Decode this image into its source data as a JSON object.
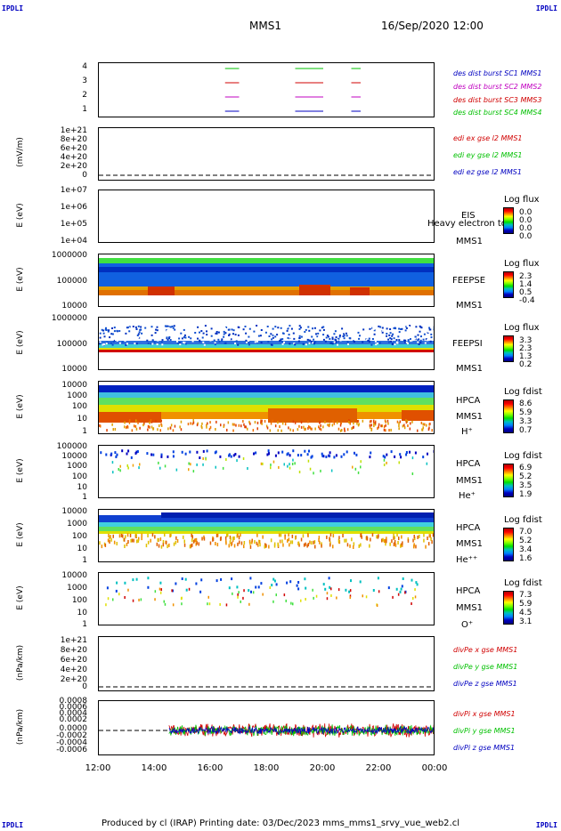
{
  "corners": {
    "tl": "IPDLI",
    "tr": "IPDLI",
    "bl": "IPDLI",
    "br": "IPDLI"
  },
  "header": {
    "mission": "MMS1",
    "datetime": "16/Sep/2020 12:00"
  },
  "footer": "Produced by cl (IRAP)    Printing date: 03/Dec/2023    mms_mms1_srvy_vue_web2.cl",
  "colors": {
    "mms1": "#0000c0",
    "mms2": "#c000c0",
    "mms3": "#d00000",
    "mms4": "#00c000",
    "x": "#d00000",
    "y": "#00c000",
    "z": "#0000c0"
  },
  "chart_data": {
    "type": "line",
    "x_ticks": [
      "12:00",
      "14:00",
      "16:00",
      "18:00",
      "20:00",
      "22:00",
      "00:00"
    ],
    "xlim": [
      "12:00",
      "00:00"
    ],
    "panels": [
      {
        "id": "burst",
        "yticks": [
          "4",
          "3",
          "2",
          "1"
        ],
        "legend": [
          "des dist burst SC1 MMS1",
          "des dist burst SC2 MMS2",
          "des dist burst SC3 MMS3",
          "des dist burst SC4 MMS4"
        ],
        "intervals": [
          [
            "16:30",
            "17:00"
          ],
          [
            "19:00",
            "20:00"
          ],
          [
            "21:00",
            "21:20"
          ]
        ]
      },
      {
        "id": "edi",
        "ylabel": "(mV/m)",
        "yticks": [
          "1e+21",
          "8e+20",
          "6e+20",
          "4e+20",
          "2e+20",
          "0"
        ],
        "legend": [
          "edi ex gse l2 MMS1",
          "edi ey gse l2 MMS1",
          "edi ez gse l2 MMS1"
        ]
      },
      {
        "id": "eis",
        "ylabel": "E (eV)",
        "yticks": [
          "1e+07",
          "1e+06",
          "1e+05",
          "1e+04"
        ],
        "inst": [
          "EIS",
          "MMS1"
        ],
        "extra": "Heavy electron to",
        "cb_title": "Log flux",
        "cb": [
          "0.0",
          "0.0",
          "0.0",
          "0.0"
        ]
      },
      {
        "id": "feepse",
        "ylabel": "E (eV)",
        "yticks": [
          "1000000",
          "100000",
          "10000"
        ],
        "inst": [
          "FEEPSE",
          "MMS1"
        ],
        "cb_title": "Log flux",
        "cb": [
          "2.3",
          "1.4",
          "0.5",
          "-0.4"
        ]
      },
      {
        "id": "feepsi",
        "ylabel": "E (eV)",
        "yticks": [
          "1000000",
          "100000",
          "10000"
        ],
        "inst": [
          "FEEPSI",
          "MMS1"
        ],
        "cb_title": "Log flux",
        "cb": [
          "3.3",
          "2.3",
          "1.3",
          "0.2"
        ]
      },
      {
        "id": "hpca_h",
        "ylabel": "E (eV)",
        "yticks": [
          "10000",
          "1000",
          "100",
          "10",
          "1"
        ],
        "inst": [
          "HPCA",
          "MMS1",
          "H⁺"
        ],
        "cb_title": "Log fdist",
        "cb": [
          "8.6",
          "5.9",
          "3.3",
          "0.7"
        ]
      },
      {
        "id": "hpca_he",
        "ylabel": "E (eV)",
        "yticks": [
          "100000",
          "10000",
          "1000",
          "100",
          "10",
          "1"
        ],
        "inst": [
          "HPCA",
          "MMS1",
          "He⁺"
        ],
        "cb_title": "Log fdist",
        "cb": [
          "6.9",
          "5.2",
          "3.5",
          "1.9"
        ]
      },
      {
        "id": "hpca_hepp",
        "ylabel": "E (eV)",
        "yticks": [
          "10000",
          "1000",
          "100",
          "10",
          "1"
        ],
        "inst": [
          "HPCA",
          "MMS1",
          "He⁺⁺"
        ],
        "cb_title": "Log fdist",
        "cb": [
          "7.0",
          "5.2",
          "3.4",
          "1.6"
        ]
      },
      {
        "id": "hpca_o",
        "ylabel": "E (eV)",
        "yticks": [
          "10000",
          "1000",
          "100",
          "10",
          "1"
        ],
        "inst": [
          "HPCA",
          "MMS1",
          "O⁺"
        ],
        "cb_title": "Log fdist",
        "cb": [
          "7.3",
          "5.9",
          "4.5",
          "3.1"
        ]
      },
      {
        "id": "divpe",
        "ylabel": "(nPa/km)",
        "yticks": [
          "1e+21",
          "8e+20",
          "6e+20",
          "4e+20",
          "2e+20",
          "0"
        ],
        "legend": [
          "divPe x gse MMS1",
          "divPe y gse MMS1",
          "divPe z gse MMS1"
        ]
      },
      {
        "id": "divpi",
        "ylabel": "(nPa/km)",
        "yticks": [
          "0.0008",
          "0.0006",
          "0.0004",
          "0.0002",
          "0.0000",
          "-0.0002",
          "-0.0004",
          "-0.0006"
        ],
        "legend": [
          "divPi x gse MMS1",
          "divPi y gse MMS1",
          "divPi z gse MMS1"
        ],
        "data_start": "14:30"
      }
    ]
  }
}
